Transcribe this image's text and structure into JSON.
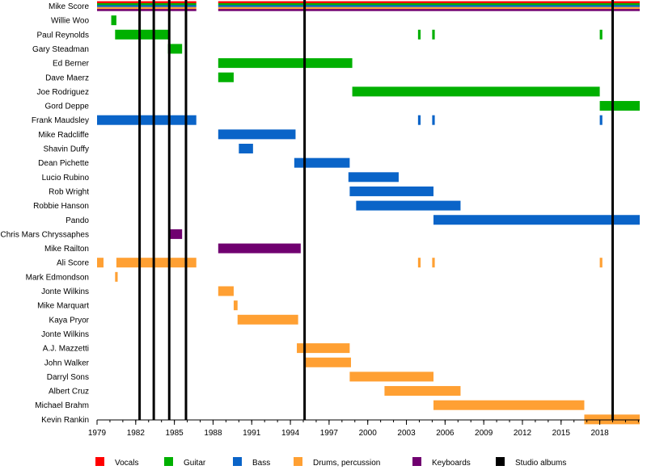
{
  "chart_data": {
    "type": "timeline",
    "title": "",
    "xlabel": "",
    "ylabel": "",
    "xlim": [
      1979,
      2021.1
    ],
    "ticks": [
      "1979",
      "1982",
      "1985",
      "1988",
      "1991",
      "1994",
      "1997",
      "2000",
      "2003",
      "2006",
      "2009",
      "2012",
      "2015",
      "2018"
    ],
    "roles": [
      {
        "key": "vocals",
        "name": "Vocals",
        "color": "#ff0000"
      },
      {
        "key": "guitar",
        "name": "Guitar",
        "color": "#00b000"
      },
      {
        "key": "bass",
        "name": "Bass",
        "color": "#0a64c8"
      },
      {
        "key": "drums",
        "name": "Drums, percussion",
        "color": "#ffa033"
      },
      {
        "key": "keyboards",
        "name": "Keyboards",
        "color": "#700070"
      },
      {
        "key": "albums",
        "name": "Studio albums",
        "color": "#000000"
      }
    ],
    "studio_albums": [
      1982.3,
      1983.4,
      1984.6,
      1985.9,
      1995.1,
      2019.0
    ],
    "members": [
      {
        "name": "Mike Score",
        "bands": [
          {
            "role": "all",
            "start": 1979,
            "end": 1986.7
          },
          {
            "role": "all",
            "start": 1988.4,
            "end": 2021.1
          }
        ]
      },
      {
        "name": "Willie Woo",
        "bands": [
          {
            "role": "guitar",
            "start": 1980.1,
            "end": 1980.5
          }
        ]
      },
      {
        "name": "Paul Reynolds",
        "bands": [
          {
            "role": "guitar",
            "start": 1980.4,
            "end": 1984.6
          },
          {
            "role": "guitar",
            "start": 2003.9,
            "end": 2004.1
          },
          {
            "role": "guitar",
            "start": 2005.0,
            "end": 2005.2
          },
          {
            "role": "guitar",
            "start": 2018.0,
            "end": 2018.2
          }
        ]
      },
      {
        "name": "Gary Steadman",
        "bands": [
          {
            "role": "guitar",
            "start": 1984.5,
            "end": 1985.6
          }
        ]
      },
      {
        "name": "Ed Berner",
        "bands": [
          {
            "role": "guitar",
            "start": 1988.4,
            "end": 1998.8
          }
        ]
      },
      {
        "name": "Dave Maerz",
        "bands": [
          {
            "role": "guitar",
            "start": 1988.4,
            "end": 1989.6
          }
        ]
      },
      {
        "name": "Joe Rodriguez",
        "bands": [
          {
            "role": "guitar",
            "start": 1998.8,
            "end": 2018.0
          }
        ]
      },
      {
        "name": "Gord Deppe",
        "bands": [
          {
            "role": "guitar",
            "start": 2018.0,
            "end": 2021.1
          }
        ]
      },
      {
        "name": "Frank Maudsley",
        "bands": [
          {
            "role": "bass",
            "start": 1979,
            "end": 1986.7
          },
          {
            "role": "bass",
            "start": 2003.9,
            "end": 2004.1
          },
          {
            "role": "bass",
            "start": 2005.0,
            "end": 2005.2
          },
          {
            "role": "bass",
            "start": 2018.0,
            "end": 2018.2
          }
        ]
      },
      {
        "name": "Mike Radcliffe",
        "bands": [
          {
            "role": "bass",
            "start": 1988.4,
            "end": 1994.4
          }
        ]
      },
      {
        "name": "Shavin Duffy",
        "bands": [
          {
            "role": "bass",
            "start": 1990.0,
            "end": 1991.1
          }
        ]
      },
      {
        "name": "Dean Pichette",
        "bands": [
          {
            "role": "bass",
            "start": 1994.3,
            "end": 1998.6
          }
        ]
      },
      {
        "name": "Lucio Rubino",
        "bands": [
          {
            "role": "bass",
            "start": 1998.5,
            "end": 2002.4
          }
        ]
      },
      {
        "name": "Rob Wright",
        "bands": [
          {
            "role": "bass",
            "start": 1998.6,
            "end": 2005.1
          }
        ]
      },
      {
        "name": "Robbie Hanson",
        "bands": [
          {
            "role": "bass",
            "start": 1999.1,
            "end": 2007.2
          }
        ]
      },
      {
        "name": "Pando",
        "bands": [
          {
            "role": "bass",
            "start": 2005.1,
            "end": 2021.1
          }
        ]
      },
      {
        "name": "Chris Mars Chryssaphes",
        "bands": [
          {
            "role": "keyboards",
            "start": 1984.6,
            "end": 1985.6
          }
        ]
      },
      {
        "name": "Mike Railton",
        "bands": [
          {
            "role": "keyboards",
            "start": 1988.4,
            "end": 1994.8
          }
        ]
      },
      {
        "name": "Ali Score",
        "bands": [
          {
            "role": "drums",
            "start": 1979,
            "end": 1979.5
          },
          {
            "role": "drums",
            "start": 1980.5,
            "end": 1986.7
          },
          {
            "role": "drums",
            "start": 2003.9,
            "end": 2004.1
          },
          {
            "role": "drums",
            "start": 2005.0,
            "end": 2005.2
          },
          {
            "role": "drums",
            "start": 2018.0,
            "end": 2018.2
          }
        ]
      },
      {
        "name": "Mark Edmondson",
        "bands": [
          {
            "role": "drums",
            "start": 1980.4,
            "end": 1980.6
          }
        ]
      },
      {
        "name": "Jonte Wilkins",
        "bands": [
          {
            "role": "drums",
            "start": 1988.4,
            "end": 1989.6
          }
        ]
      },
      {
        "name": "Mike Marquart",
        "bands": [
          {
            "role": "drums",
            "start": 1989.6,
            "end": 1989.9
          }
        ]
      },
      {
        "name": "Kaya Pryor",
        "bands": [
          {
            "role": "drums",
            "start": 1989.9,
            "end": 1994.6
          }
        ]
      },
      {
        "name": "Jonte Wilkins",
        "bands": []
      },
      {
        "name": "A.J. Mazzetti",
        "bands": [
          {
            "role": "drums",
            "start": 1994.5,
            "end": 1998.6
          }
        ]
      },
      {
        "name": "John Walker",
        "bands": [
          {
            "role": "drums",
            "start": 1995.1,
            "end": 1998.7
          }
        ]
      },
      {
        "name": "Darryl Sons",
        "bands": [
          {
            "role": "drums",
            "start": 1998.6,
            "end": 2005.1
          }
        ]
      },
      {
        "name": "Albert Cruz",
        "bands": [
          {
            "role": "drums",
            "start": 2001.3,
            "end": 2007.2
          }
        ]
      },
      {
        "name": "Michael Brahm",
        "bands": [
          {
            "role": "drums",
            "start": 2005.1,
            "end": 2016.8
          }
        ]
      },
      {
        "name": "Kevin Rankin",
        "bands": [
          {
            "role": "drums",
            "start": 2016.8,
            "end": 2021.1
          }
        ]
      }
    ]
  }
}
